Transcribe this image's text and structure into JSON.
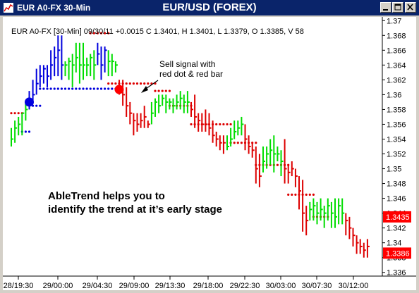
{
  "window": {
    "title": "EUR A0-FX 30-Min",
    "chart_title": "EUR/USD (FOREX)"
  },
  "colors": {
    "up": "#00dd00",
    "down": "#dd0000",
    "neutral": "#0000dd",
    "signal": "#ff0000"
  },
  "chart_data": {
    "type": "ohlc-bar",
    "title": "EUR/USD (FOREX)",
    "info_line": "EUR A0-FX [30-Min] 09/30/11  +0.0015 C 1.3401, H 1.3401, L 1.3379, O 1.3385, V 58",
    "y_axis": {
      "position": "right",
      "range": [
        1.3355,
        1.3705
      ],
      "ticks": [
        "1.37",
        "1.368",
        "1.366",
        "1.364",
        "1.362",
        "1.36",
        "1.358",
        "1.356",
        "1.354",
        "1.352",
        "1.35",
        "1.348",
        "1.346",
        "1.344",
        "1.342",
        "1.34",
        "1.338",
        "1.336"
      ]
    },
    "x_axis": {
      "ticks": [
        "28/19:30",
        "29/00:00",
        "29/04:30",
        "29/09:00",
        "29/13:30",
        "29/18:00",
        "29/22:30",
        "30/03:00",
        "30/07:30",
        "30/12:00"
      ]
    },
    "price_labels": [
      "1.3435",
      "1.3386"
    ],
    "annotation_signal": "Sell signal with\nred dot & red bar",
    "annotation_text": "AbleTrend helps you to\nidentify the trend at it’s early stage",
    "bars": [
      [
        1.354,
        1.353,
        1.3555,
        "g"
      ],
      [
        1.3555,
        1.3535,
        1.3565,
        "g"
      ],
      [
        1.356,
        1.3545,
        1.357,
        "g"
      ],
      [
        1.3575,
        1.3545,
        1.3575,
        "g"
      ],
      [
        1.358,
        1.3565,
        1.359,
        "g"
      ],
      [
        1.359,
        1.358,
        1.3605,
        "b"
      ],
      [
        1.36,
        1.359,
        1.362,
        "b"
      ],
      [
        1.3615,
        1.36,
        1.3635,
        "b"
      ],
      [
        1.3625,
        1.361,
        1.364,
        "b"
      ],
      [
        1.3635,
        1.3615,
        1.364,
        "b"
      ],
      [
        1.3625,
        1.361,
        1.364,
        "b"
      ],
      [
        1.364,
        1.362,
        1.366,
        "b"
      ],
      [
        1.365,
        1.3625,
        1.3665,
        "b"
      ],
      [
        1.366,
        1.3625,
        1.368,
        "b"
      ],
      [
        1.364,
        1.362,
        1.368,
        "b"
      ],
      [
        1.364,
        1.3625,
        1.3645,
        "g"
      ],
      [
        1.3645,
        1.362,
        1.365,
        "g"
      ],
      [
        1.364,
        1.361,
        1.3655,
        "g"
      ],
      [
        1.365,
        1.363,
        1.367,
        "g"
      ],
      [
        1.364,
        1.3615,
        1.367,
        "g"
      ],
      [
        1.364,
        1.362,
        1.367,
        "g"
      ],
      [
        1.364,
        1.3625,
        1.365,
        "g"
      ],
      [
        1.365,
        1.3625,
        1.3655,
        "g"
      ],
      [
        1.364,
        1.362,
        1.366,
        "g"
      ],
      [
        1.3655,
        1.364,
        1.367,
        "b"
      ],
      [
        1.364,
        1.362,
        1.3665,
        "b"
      ],
      [
        1.366,
        1.363,
        1.3665,
        "b"
      ],
      [
        1.3645,
        1.3625,
        1.366,
        "g"
      ],
      [
        1.3645,
        1.3625,
        1.3655,
        "g"
      ],
      [
        1.364,
        1.363,
        1.3645,
        "g"
      ],
      [
        1.361,
        1.36,
        1.362,
        "r"
      ],
      [
        1.36,
        1.3585,
        1.362,
        "r"
      ],
      [
        1.3585,
        1.357,
        1.361,
        "r"
      ],
      [
        1.3575,
        1.356,
        1.359,
        "r"
      ],
      [
        1.3565,
        1.3545,
        1.3575,
        "r"
      ],
      [
        1.356,
        1.355,
        1.3575,
        "r"
      ],
      [
        1.3565,
        1.3555,
        1.3575,
        "r"
      ],
      [
        1.357,
        1.3555,
        1.3585,
        "r"
      ],
      [
        1.356,
        1.3555,
        1.3565,
        "r"
      ],
      [
        1.3575,
        1.356,
        1.359,
        "g"
      ],
      [
        1.359,
        1.357,
        1.3595,
        "g"
      ],
      [
        1.3585,
        1.3575,
        1.36,
        "g"
      ],
      [
        1.3595,
        1.3585,
        1.36,
        "g"
      ],
      [
        1.359,
        1.3575,
        1.36,
        "g"
      ],
      [
        1.359,
        1.358,
        1.3595,
        "g"
      ],
      [
        1.3585,
        1.3575,
        1.3595,
        "g"
      ],
      [
        1.359,
        1.358,
        1.36,
        "g"
      ],
      [
        1.3595,
        1.358,
        1.3605,
        "g"
      ],
      [
        1.359,
        1.3575,
        1.36,
        "g"
      ],
      [
        1.359,
        1.3575,
        1.3605,
        "g"
      ],
      [
        1.358,
        1.357,
        1.359,
        "r"
      ],
      [
        1.357,
        1.3555,
        1.36,
        "r"
      ],
      [
        1.3565,
        1.355,
        1.3575,
        "r"
      ],
      [
        1.356,
        1.355,
        1.3575,
        "r"
      ],
      [
        1.356,
        1.355,
        1.358,
        "r"
      ],
      [
        1.3555,
        1.3545,
        1.3575,
        "r"
      ],
      [
        1.3545,
        1.3535,
        1.3565,
        "r"
      ],
      [
        1.354,
        1.353,
        1.355,
        "r"
      ],
      [
        1.3535,
        1.3525,
        1.3545,
        "r"
      ],
      [
        1.3535,
        1.352,
        1.3545,
        "r"
      ],
      [
        1.353,
        1.3525,
        1.3545,
        "g"
      ],
      [
        1.354,
        1.353,
        1.3555,
        "g"
      ],
      [
        1.355,
        1.354,
        1.3565,
        "g"
      ],
      [
        1.3555,
        1.3545,
        1.3565,
        "g"
      ],
      [
        1.356,
        1.3545,
        1.357,
        "g"
      ],
      [
        1.354,
        1.3525,
        1.356,
        "r"
      ],
      [
        1.353,
        1.352,
        1.3545,
        "r"
      ],
      [
        1.3525,
        1.3515,
        1.3535,
        "r"
      ],
      [
        1.35,
        1.348,
        1.353,
        "r"
      ],
      [
        1.349,
        1.3475,
        1.352,
        "r"
      ],
      [
        1.351,
        1.3495,
        1.353,
        "g"
      ],
      [
        1.352,
        1.35,
        1.353,
        "g"
      ],
      [
        1.3525,
        1.3505,
        1.354,
        "g"
      ],
      [
        1.352,
        1.3495,
        1.3545,
        "g"
      ],
      [
        1.352,
        1.351,
        1.353,
        "g"
      ],
      [
        1.351,
        1.349,
        1.3525,
        "g"
      ],
      [
        1.35,
        1.348,
        1.354,
        "r"
      ],
      [
        1.3495,
        1.348,
        1.3505,
        "r"
      ],
      [
        1.35,
        1.349,
        1.351,
        "r"
      ],
      [
        1.349,
        1.3475,
        1.35,
        "r"
      ],
      [
        1.347,
        1.3445,
        1.349,
        "r"
      ],
      [
        1.344,
        1.3415,
        1.3485,
        "r"
      ],
      [
        1.343,
        1.341,
        1.345,
        "r"
      ],
      [
        1.3445,
        1.343,
        1.3455,
        "g"
      ],
      [
        1.345,
        1.343,
        1.346,
        "g"
      ],
      [
        1.344,
        1.3425,
        1.3455,
        "g"
      ],
      [
        1.3445,
        1.343,
        1.346,
        "g"
      ],
      [
        1.344,
        1.342,
        1.345,
        "g"
      ],
      [
        1.345,
        1.343,
        1.346,
        "g"
      ],
      [
        1.344,
        1.342,
        1.3455,
        "g"
      ],
      [
        1.3435,
        1.342,
        1.346,
        "g"
      ],
      [
        1.345,
        1.3425,
        1.346,
        "g"
      ],
      [
        1.344,
        1.3425,
        1.346,
        "g"
      ],
      [
        1.343,
        1.341,
        1.344,
        "r"
      ],
      [
        1.342,
        1.3405,
        1.3435,
        "r"
      ],
      [
        1.341,
        1.3395,
        1.342,
        "r"
      ],
      [
        1.34,
        1.3385,
        1.341,
        "r"
      ],
      [
        1.3395,
        1.3385,
        1.3405,
        "r"
      ],
      [
        1.339,
        1.338,
        1.34,
        "r"
      ],
      [
        1.3395,
        1.338,
        1.3405,
        "r"
      ]
    ],
    "stop_lines": [
      {
        "color": "b",
        "y": 1.355,
        "from": 3,
        "to": 5
      },
      {
        "color": "b",
        "y": 1.3585,
        "from": 6,
        "to": 8
      },
      {
        "color": "b",
        "y": 1.3608,
        "from": 8,
        "to": 30
      },
      {
        "color": "r",
        "y": 1.3575,
        "from": 0,
        "to": 3
      },
      {
        "color": "r",
        "y": 1.3683,
        "from": 22,
        "to": 27
      },
      {
        "color": "r",
        "y": 1.3615,
        "from": 27,
        "to": 40
      },
      {
        "color": "r",
        "y": 1.3605,
        "from": 40,
        "to": 44
      },
      {
        "color": "r",
        "y": 1.3585,
        "from": 44,
        "to": 50
      },
      {
        "color": "r",
        "y": 1.356,
        "from": 50,
        "to": 61
      },
      {
        "color": "r",
        "y": 1.3535,
        "from": 61,
        "to": 68
      },
      {
        "color": "r",
        "y": 1.3505,
        "from": 68,
        "to": 77
      },
      {
        "color": "r",
        "y": 1.3465,
        "from": 77,
        "to": 84
      },
      {
        "color": "r",
        "y": 1.3435,
        "from": 84,
        "to": 88
      }
    ],
    "signals": [
      {
        "color": "b",
        "bar": 5,
        "y": 1.359
      },
      {
        "color": "r",
        "bar": 30,
        "y": 1.3607
      }
    ]
  }
}
